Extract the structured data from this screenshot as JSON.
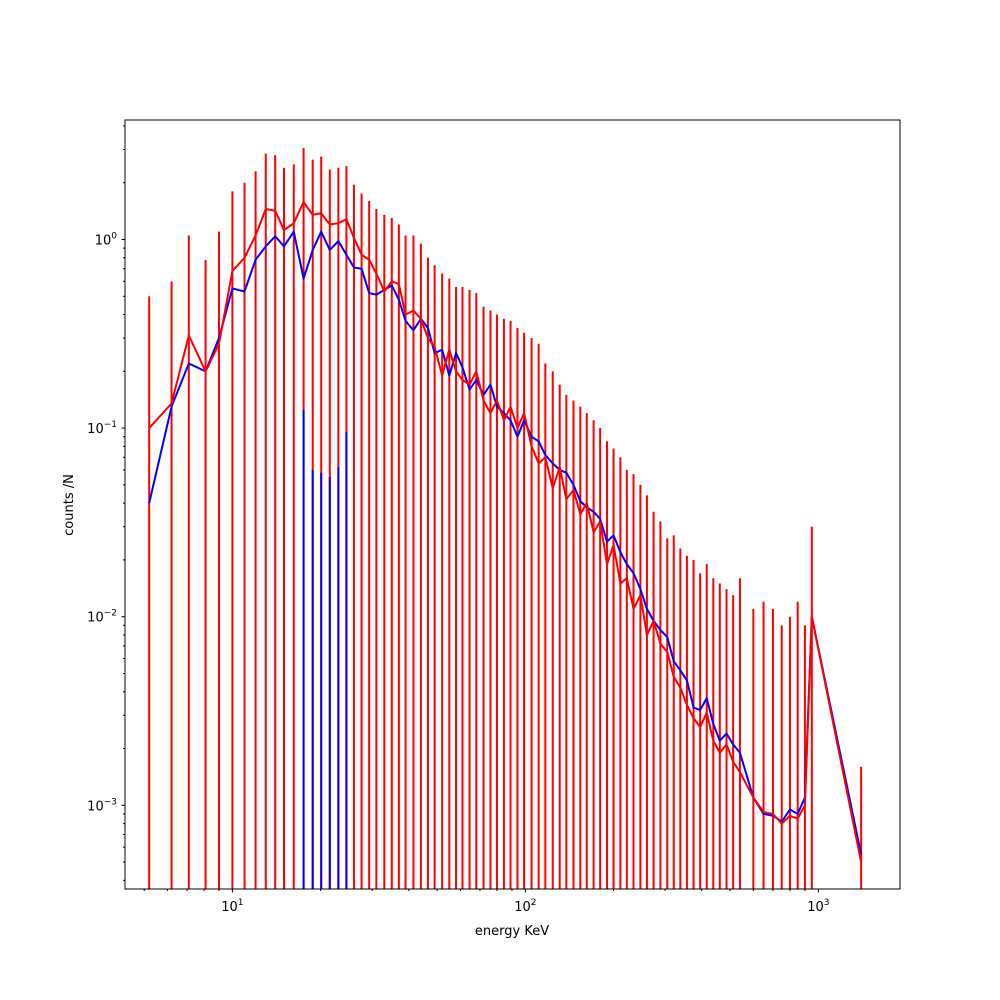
{
  "chart_data": {
    "type": "line",
    "title": "",
    "xlabel": "energy KeV",
    "ylabel": "counts /N",
    "xscale": "log",
    "yscale": "log",
    "xlim": [
      4.3,
      1900
    ],
    "ylim": [
      0.00036,
      4.3
    ],
    "grid": false,
    "legend": "none",
    "x_ticks": [
      {
        "value": 10,
        "base": "10",
        "exp": "1"
      },
      {
        "value": 100,
        "base": "10",
        "exp": "2"
      },
      {
        "value": 1000,
        "base": "10",
        "exp": "3"
      }
    ],
    "y_ticks": [
      {
        "value": 0.001,
        "base": "10",
        "exp": "−3"
      },
      {
        "value": 0.01,
        "base": "10",
        "exp": "−2"
      },
      {
        "value": 0.1,
        "base": "10",
        "exp": "−1"
      },
      {
        "value": 1,
        "base": "10",
        "exp": "0"
      }
    ],
    "series": [
      {
        "color": "#0000ff",
        "x": [
          5.2,
          6.2,
          7.1,
          8.1,
          9.0,
          10.0,
          11.0,
          12.0,
          13.0,
          14.0,
          15.0,
          16.2,
          17.5,
          18.8,
          20.1,
          21.5,
          23.0,
          24.5,
          26.0,
          27.6,
          29.3,
          31.0,
          33.0,
          35.0,
          37.0,
          39.0,
          41.5,
          44.0,
          46.5,
          49.0,
          52.0,
          55.0,
          58.0,
          61.0,
          64.5,
          68.0,
          72.0,
          76.0,
          80.0,
          84.5,
          89.0,
          94.0,
          99.0,
          105.0,
          111.0,
          117.0,
          124.0,
          131.0,
          138.0,
          146.0,
          154.0,
          162.0,
          171.0,
          180.0,
          190.0,
          200.0,
          211.0,
          222.0,
          234.0,
          247.0,
          260.0,
          274.0,
          289.0,
          305.0,
          321.0,
          338.0,
          356.0,
          375.0,
          395.0,
          416.0,
          438.0,
          461.0,
          486.0,
          512.0,
          540.0,
          600.0,
          650.0,
          700.0,
          750.0,
          800.0,
          850.0,
          900.0,
          950.0,
          1400.0
        ],
        "y": [
          0.04,
          0.13,
          0.22,
          0.2,
          0.3,
          0.55,
          0.53,
          0.78,
          0.92,
          1.04,
          0.92,
          1.1,
          0.62,
          0.88,
          1.1,
          0.88,
          0.98,
          0.83,
          0.71,
          0.7,
          0.52,
          0.51,
          0.54,
          0.57,
          0.48,
          0.37,
          0.33,
          0.38,
          0.34,
          0.25,
          0.26,
          0.19,
          0.25,
          0.21,
          0.16,
          0.18,
          0.15,
          0.17,
          0.13,
          0.12,
          0.11,
          0.09,
          0.11,
          0.09,
          0.085,
          0.072,
          0.065,
          0.06,
          0.058,
          0.05,
          0.041,
          0.038,
          0.036,
          0.033,
          0.025,
          0.027,
          0.022,
          0.019,
          0.017,
          0.014,
          0.011,
          0.0095,
          0.0085,
          0.0078,
          0.0058,
          0.0052,
          0.0046,
          0.0033,
          0.0032,
          0.0037,
          0.0027,
          0.0022,
          0.0024,
          0.0021,
          0.0019,
          0.0011,
          0.0009,
          0.00088,
          0.00082,
          0.00095,
          0.0009,
          0.0011,
          0.01,
          0.00055
        ]
      },
      {
        "color": "#ff0000",
        "x": [
          5.2,
          6.2,
          7.1,
          8.1,
          9.0,
          10.0,
          11.0,
          12.0,
          13.0,
          14.0,
          15.0,
          16.2,
          17.5,
          18.8,
          20.1,
          21.5,
          23.0,
          24.5,
          26.0,
          27.6,
          29.3,
          31.0,
          33.0,
          35.0,
          37.0,
          39.0,
          41.5,
          44.0,
          46.5,
          49.0,
          52.0,
          55.0,
          58.0,
          61.0,
          64.5,
          68.0,
          72.0,
          76.0,
          80.0,
          84.5,
          89.0,
          94.0,
          99.0,
          105.0,
          111.0,
          117.0,
          124.0,
          131.0,
          138.0,
          146.0,
          154.0,
          162.0,
          171.0,
          180.0,
          190.0,
          200.0,
          211.0,
          222.0,
          234.0,
          247.0,
          260.0,
          274.0,
          289.0,
          305.0,
          321.0,
          338.0,
          356.0,
          375.0,
          395.0,
          416.0,
          438.0,
          461.0,
          486.0,
          512.0,
          540.0,
          600.0,
          650.0,
          700.0,
          750.0,
          800.0,
          850.0,
          900.0,
          950.0,
          1400.0
        ],
        "y": [
          0.1,
          0.135,
          0.31,
          0.2,
          0.28,
          0.68,
          0.8,
          1.05,
          1.45,
          1.42,
          1.12,
          1.22,
          1.58,
          1.35,
          1.38,
          1.2,
          1.22,
          1.28,
          1.02,
          0.83,
          0.78,
          0.66,
          0.53,
          0.6,
          0.58,
          0.4,
          0.42,
          0.38,
          0.3,
          0.27,
          0.19,
          0.26,
          0.2,
          0.18,
          0.17,
          0.2,
          0.14,
          0.12,
          0.14,
          0.11,
          0.13,
          0.1,
          0.12,
          0.08,
          0.065,
          0.07,
          0.048,
          0.062,
          0.042,
          0.047,
          0.035,
          0.04,
          0.028,
          0.032,
          0.019,
          0.024,
          0.015,
          0.016,
          0.011,
          0.013,
          0.008,
          0.0095,
          0.0072,
          0.0065,
          0.0048,
          0.0042,
          0.0034,
          0.0029,
          0.0026,
          0.0031,
          0.0022,
          0.0019,
          0.0021,
          0.0017,
          0.0015,
          0.0011,
          0.00092,
          0.0009,
          0.0008,
          0.00088,
          0.00085,
          0.001,
          0.01,
          0.0005
        ]
      }
    ],
    "errorbars": {
      "color": "#ff0000",
      "x": [
        5.2,
        6.2,
        7.1,
        8.1,
        9.0,
        10.0,
        11.0,
        12.0,
        13.0,
        14.0,
        15.0,
        16.2,
        17.5,
        18.8,
        20.1,
        21.5,
        23.0,
        24.5,
        26.0,
        27.6,
        29.3,
        31.0,
        33.0,
        35.0,
        37.0,
        39.0,
        41.5,
        44.0,
        46.5,
        49.0,
        52.0,
        55.0,
        58.0,
        61.0,
        64.5,
        68.0,
        72.0,
        76.0,
        80.0,
        84.5,
        89.0,
        94.0,
        99.0,
        105.0,
        111.0,
        117.0,
        124.0,
        131.0,
        138.0,
        146.0,
        154.0,
        162.0,
        171.0,
        180.0,
        190.0,
        200.0,
        211.0,
        222.0,
        234.0,
        247.0,
        260.0,
        274.0,
        289.0,
        305.0,
        321.0,
        338.0,
        356.0,
        375.0,
        395.0,
        416.0,
        438.0,
        461.0,
        486.0,
        512.0,
        540.0,
        600.0,
        650.0,
        700.0,
        750.0,
        800.0,
        850.0,
        900.0,
        950.0,
        1400.0
      ],
      "upper": [
        0.5,
        0.6,
        1.05,
        0.78,
        1.1,
        1.8,
        2.0,
        2.3,
        2.85,
        2.8,
        2.4,
        2.5,
        3.05,
        2.65,
        2.75,
        2.35,
        2.4,
        2.45,
        1.95,
        1.75,
        1.6,
        1.45,
        1.35,
        1.3,
        1.2,
        1.05,
        1.05,
        0.95,
        0.8,
        0.73,
        0.66,
        0.62,
        0.56,
        0.56,
        0.54,
        0.52,
        0.44,
        0.42,
        0.4,
        0.38,
        0.37,
        0.34,
        0.32,
        0.3,
        0.28,
        0.22,
        0.2,
        0.17,
        0.15,
        0.14,
        0.13,
        0.12,
        0.11,
        0.1,
        0.085,
        0.078,
        0.07,
        0.06,
        0.057,
        0.05,
        0.044,
        0.036,
        0.032,
        0.026,
        0.027,
        0.023,
        0.021,
        0.02,
        0.017,
        0.019,
        0.016,
        0.015,
        0.014,
        0.013,
        0.016,
        0.011,
        0.012,
        0.011,
        0.009,
        0.01,
        0.012,
        0.009,
        0.03,
        0.0016
      ]
    },
    "lower_errorbars": {
      "color": "#0000ff",
      "x": [
        17.5,
        18.8,
        20.1,
        21.5,
        23.0,
        24.5
      ],
      "upper": [
        0.125,
        0.06,
        0.058,
        0.055,
        0.062,
        0.095
      ]
    }
  }
}
